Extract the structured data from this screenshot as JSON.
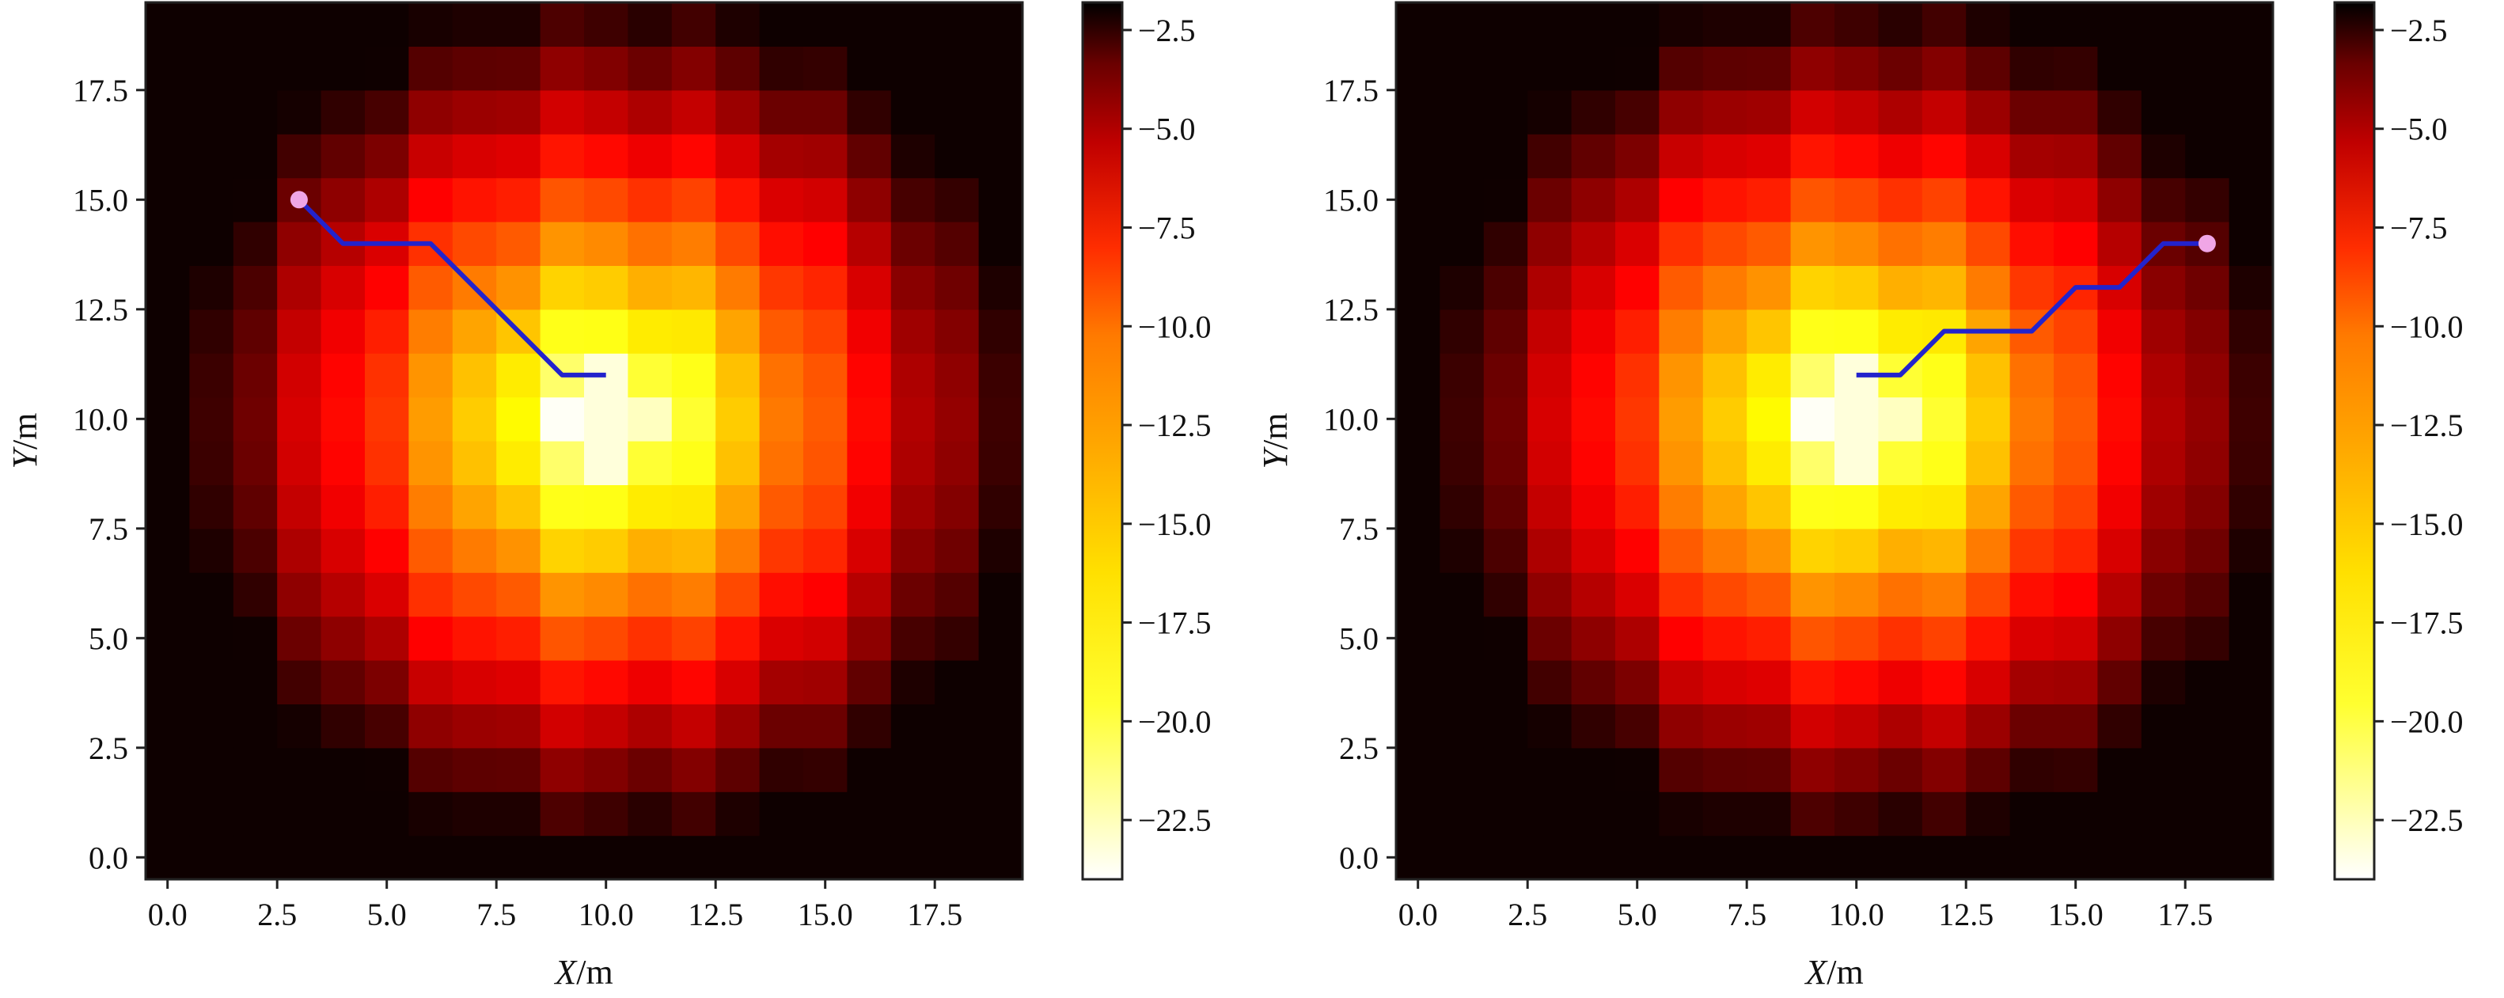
{
  "chart_data": [
    {
      "type": "heatmap",
      "title": "",
      "xlabel_var": "X",
      "xlabel_unit": "/m",
      "ylabel_var": "Y",
      "ylabel_unit": "/m",
      "xlim": [
        -0.5,
        19.5
      ],
      "ylim": [
        -0.5,
        19.5
      ],
      "xticks": [
        0.0,
        2.5,
        5.0,
        7.5,
        10.0,
        12.5,
        15.0,
        17.5
      ],
      "yticks": [
        0.0,
        2.5,
        5.0,
        7.5,
        10.0,
        12.5,
        15.0,
        17.5
      ],
      "colorbar_range": [
        -24,
        -1.8
      ],
      "colorbar_ticks": [
        -2.5,
        -5.0,
        -7.5,
        -10.0,
        -12.5,
        -15.0,
        -17.5,
        -20.0,
        -22.5
      ],
      "colormap": "hot",
      "grid": false,
      "field_source": [
        10,
        10
      ],
      "path_color": "#2323cc",
      "path_start_marker_color": "#f0a6e6",
      "path": [
        [
          3,
          15
        ],
        [
          4,
          14
        ],
        [
          5,
          14
        ],
        [
          6,
          14
        ],
        [
          7,
          13
        ],
        [
          8,
          12
        ],
        [
          9,
          11
        ],
        [
          10,
          11
        ]
      ]
    },
    {
      "type": "heatmap",
      "title": "",
      "xlabel_var": "X",
      "xlabel_unit": "/m",
      "ylabel_var": "Y",
      "ylabel_unit": "/m",
      "xlim": [
        -0.5,
        19.5
      ],
      "ylim": [
        -0.5,
        19.5
      ],
      "xticks": [
        0.0,
        2.5,
        5.0,
        7.5,
        10.0,
        12.5,
        15.0,
        17.5
      ],
      "yticks": [
        0.0,
        2.5,
        5.0,
        7.5,
        10.0,
        12.5,
        15.0,
        17.5
      ],
      "colorbar_range": [
        -24,
        -1.8
      ],
      "colorbar_ticks": [
        -2.5,
        -5.0,
        -7.5,
        -10.0,
        -12.5,
        -15.0,
        -17.5,
        -20.0,
        -22.5
      ],
      "colormap": "hot",
      "grid": false,
      "field_source": [
        10,
        10
      ],
      "path_color": "#2323cc",
      "path_start_marker_color": "#f0a6e6",
      "path": [
        [
          18,
          14
        ],
        [
          17,
          14
        ],
        [
          16,
          13
        ],
        [
          15,
          13
        ],
        [
          14,
          12
        ],
        [
          13,
          12
        ],
        [
          12,
          12
        ],
        [
          11,
          11
        ],
        [
          10,
          11
        ]
      ]
    }
  ]
}
